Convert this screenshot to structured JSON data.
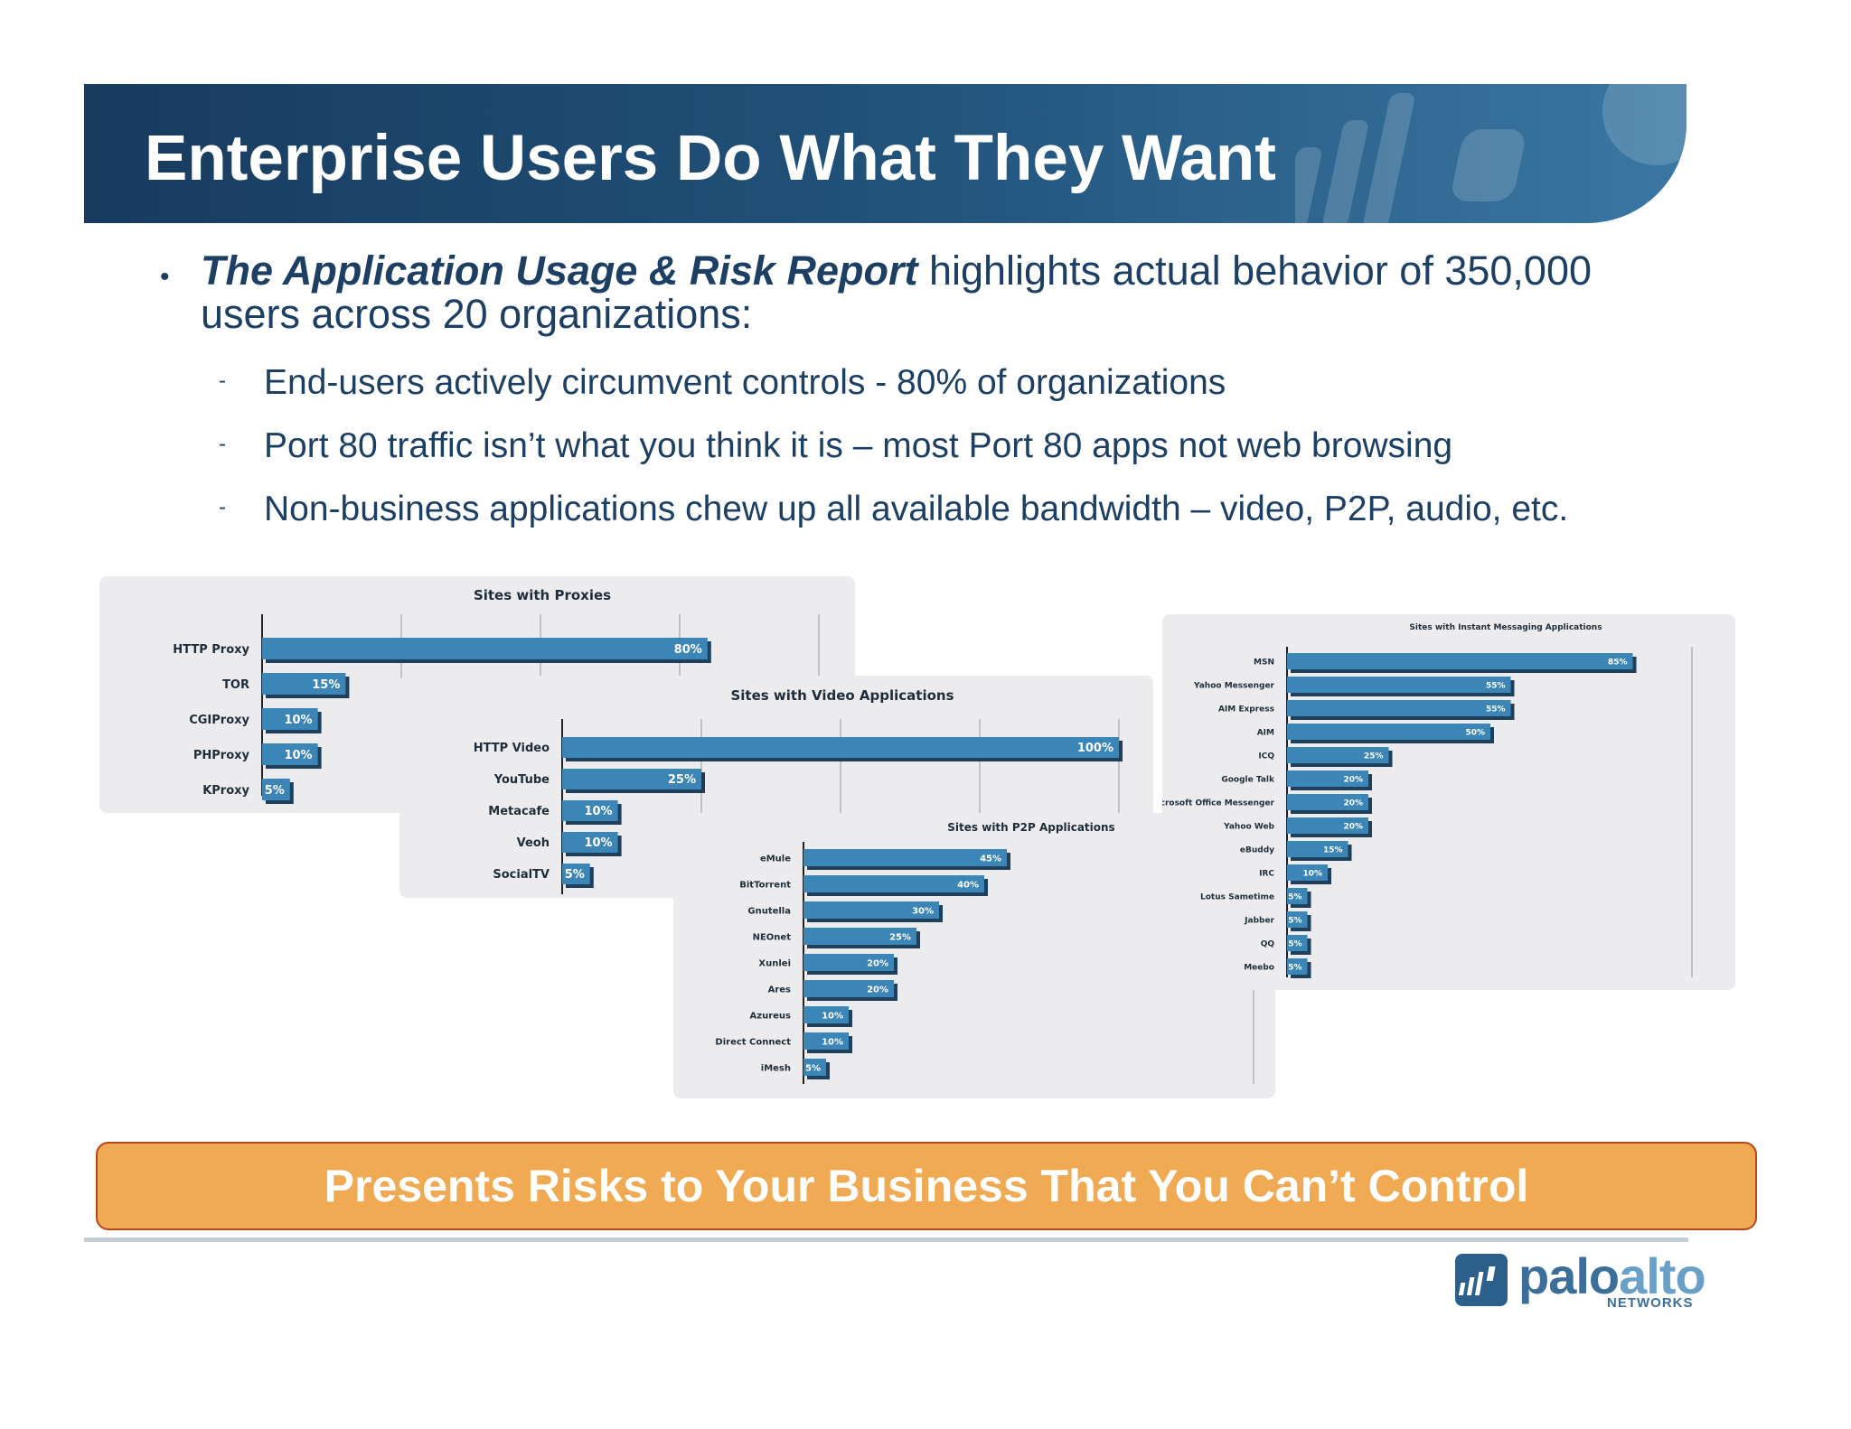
{
  "slide": {
    "title": "Enterprise Users Do What They Want",
    "intro_emphasis": "The Application Usage & Risk Report",
    "intro_rest": " highlights actual behavior of 350,000 users across 20 organizations:",
    "bullets": [
      "End-users actively circumvent controls - 80% of organizations",
      "Port 80 traffic isn’t what you think it is – most Port 80 apps not web browsing",
      "Non-business applications chew up all available bandwidth – video, P2P, audio, etc."
    ],
    "dash": "-",
    "bullet": "•",
    "banner": "Presents Risks to Your Business That You Can’t Control",
    "logo_word_1": "palo",
    "logo_word_2": "alto",
    "logo_sub": "NETWORKS"
  },
  "chart_data": [
    {
      "type": "bar",
      "title": "Sites with Proxies",
      "categories": [
        "HTTP Proxy",
        "TOR",
        "CGIProxy",
        "PHProxy",
        "KProxy"
      ],
      "values": [
        80,
        15,
        10,
        10,
        5
      ],
      "labels": [
        "80%",
        "15%",
        "10%",
        "10%",
        "5%"
      ],
      "xlim": [
        0,
        100
      ]
    },
    {
      "type": "bar",
      "title": "Sites with Video Applications",
      "categories": [
        "HTTP Video",
        "YouTube",
        "Metacafe",
        "Veoh",
        "SocialTV"
      ],
      "values": [
        100,
        25,
        10,
        10,
        5
      ],
      "labels": [
        "100%",
        "25%",
        "10%",
        "10%",
        "5%"
      ],
      "xlim": [
        0,
        100
      ]
    },
    {
      "type": "bar",
      "title": "Sites with P2P Applications",
      "categories": [
        "eMule",
        "BitTorrent",
        "Gnutella",
        "NEOnet",
        "Xunlei",
        "Ares",
        "Azureus",
        "Direct Connect",
        "iMesh"
      ],
      "values": [
        45,
        40,
        30,
        25,
        20,
        20,
        10,
        10,
        5
      ],
      "labels": [
        "45%",
        "40%",
        "30%",
        "25%",
        "20%",
        "20%",
        "10%",
        "10%",
        "5%"
      ],
      "xlim": [
        0,
        100
      ]
    },
    {
      "type": "bar",
      "title": "Sites with Instant Messaging Applications",
      "categories": [
        "MSN",
        "Yahoo Messenger",
        "AIM Express",
        "AIM",
        "ICQ",
        "Google Talk",
        "Microsoft Office Messenger",
        "Yahoo Web",
        "eBuddy",
        "IRC",
        "Lotus Sametime",
        "Jabber",
        "QQ",
        "Meebo"
      ],
      "values": [
        85,
        55,
        55,
        50,
        25,
        20,
        20,
        20,
        15,
        10,
        5,
        5,
        5,
        5
      ],
      "labels": [
        "85%",
        "55%",
        "55%",
        "50%",
        "25%",
        "20%",
        "20%",
        "20%",
        "15%",
        "10%",
        "5%",
        "5%",
        "5%",
        "5%"
      ],
      "xlim": [
        0,
        100
      ]
    }
  ]
}
